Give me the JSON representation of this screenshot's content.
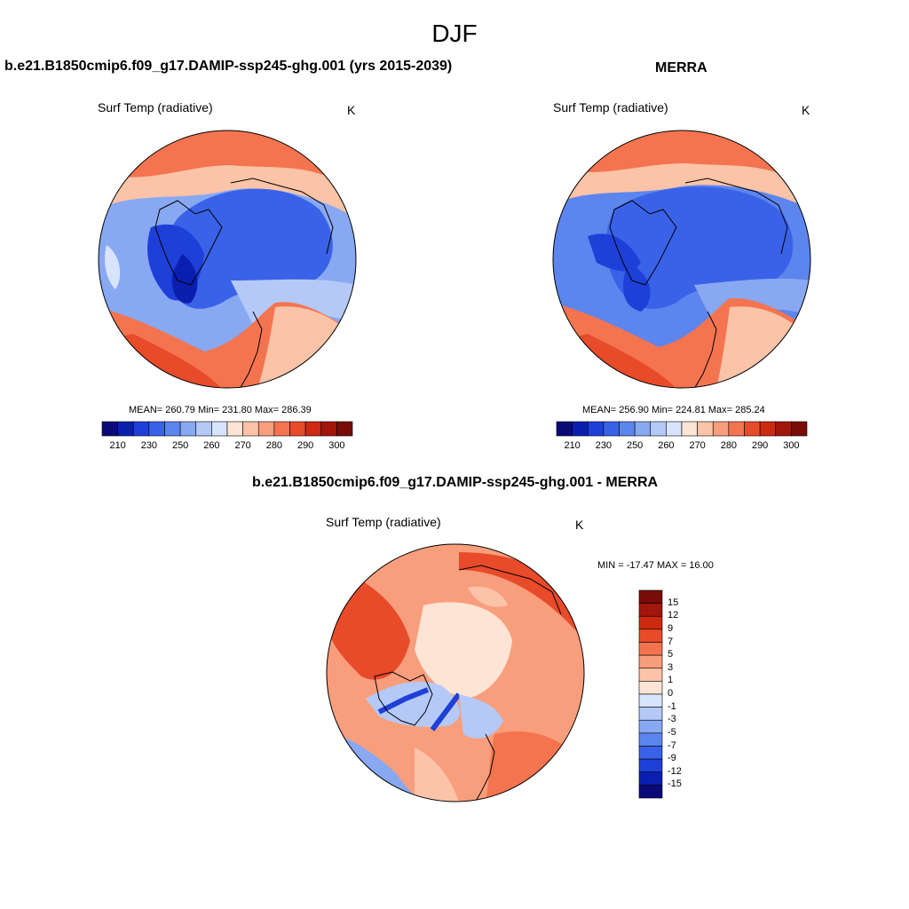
{
  "page": {
    "title": "DJF"
  },
  "panels": {
    "model": {
      "case_title": "b.e21.B1850cmip6.f09_g17.DAMIP-ssp245-ghg.001 (yrs 2015-2039)",
      "variable": "Surf Temp (radiative)",
      "units": "K",
      "stats": "MEAN= 260.79  Min= 231.80  Max= 286.39"
    },
    "obs": {
      "case_title": "MERRA",
      "variable": "Surf Temp (radiative)",
      "units": "K",
      "stats": "MEAN= 256.90  Min= 224.81  Max= 285.24"
    },
    "diff": {
      "case_title": "b.e21.B1850cmip6.f09_g17.DAMIP-ssp245-ghg.001 - MERRA",
      "variable": "Surf Temp (radiative)",
      "units": "K",
      "stats": "MIN = -17.47 MAX =  16.00"
    }
  },
  "colorbars": {
    "abs": {
      "colors": [
        "#0a0a78",
        "#0a1fb0",
        "#1e40d8",
        "#3a62e8",
        "#5d85ee",
        "#88a8f2",
        "#b4c9f7",
        "#d8e4fb",
        "#fde4d4",
        "#fbc3a7",
        "#f99e7c",
        "#f47450",
        "#e84b2a",
        "#cc2a12",
        "#a3160b",
        "#780d08"
      ],
      "tick_labels": [
        "210",
        "230",
        "250",
        "260",
        "270",
        "280",
        "290",
        "300"
      ]
    },
    "diff": {
      "colors": [
        "#780d08",
        "#a3160b",
        "#cc2a12",
        "#e84b2a",
        "#f47450",
        "#f99e7c",
        "#fbc3a7",
        "#fde4d4",
        "#d8e4fb",
        "#b4c9f7",
        "#88a8f2",
        "#5d85ee",
        "#3a62e8",
        "#1e40d8",
        "#0a1fb0",
        "#0a0a78"
      ],
      "tick_labels": [
        "15",
        "12",
        "9",
        "7",
        "5",
        "3",
        "1",
        "0",
        "-1",
        "-3",
        "-5",
        "-7",
        "-9",
        "-12",
        "-15"
      ]
    }
  },
  "colors": {
    "outline": "#000000",
    "blue_deep": "#1e40d8",
    "blue_mid": "#3a62e8",
    "blue_light": "#88a8f2",
    "blue_pale": "#d8e4fb",
    "red_pale": "#fbc3a7",
    "red_mid": "#f47450",
    "red_deep": "#cc2a12"
  }
}
